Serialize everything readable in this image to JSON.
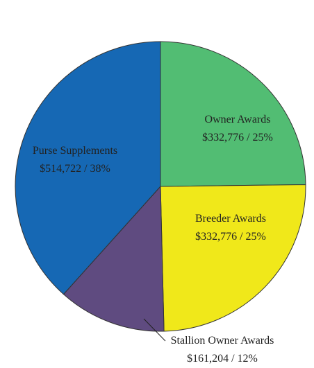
{
  "chart_data": {
    "type": "pie",
    "categories": [
      "Owner Awards",
      "Breeder Awards",
      "Stallion Owner Awards",
      "Purse Supplements"
    ],
    "values": [
      332776,
      332776,
      161204,
      514722
    ],
    "value_labels": [
      "$332,776 / 25%",
      "$332,776 / 25%",
      "$161,204 / 12%",
      "$514,722 / 38%"
    ],
    "colors": [
      "#52bd73",
      "#f0e81a",
      "#5f4b80",
      "#1668b4"
    ]
  }
}
